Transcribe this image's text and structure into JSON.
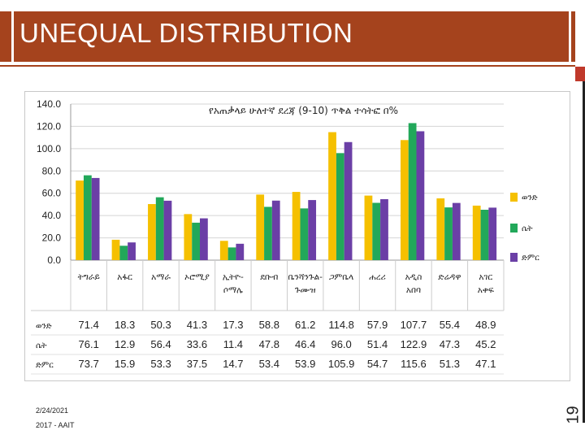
{
  "slide": {
    "title": "UNEQUAL DISTRIBUTION",
    "date": "2/24/2021",
    "footer": "2017 - AAIT",
    "page_number": "19"
  },
  "colors": {
    "title_bg": "#a5431d",
    "male": "#f5c000",
    "female": "#22a85a",
    "total": "#6b3fa6"
  },
  "chart_data": {
    "type": "bar",
    "title": "የአጠቃላይ ሁለተኛ ደረጃ (9-10) ጥቅል ተሳትፎ በ%",
    "ylim": [
      0,
      140
    ],
    "yticks": [
      "0.0",
      "20.0",
      "40.0",
      "60.0",
      "80.0",
      "100.0",
      "120.0",
      "140.0"
    ],
    "categories": [
      "ትግራይ",
      "አፋር",
      "አማራ",
      "ኦሮሚያ",
      "ኢትዮ-ሶማሌ",
      "ደቡብ",
      "ቤንሻንጉል-ጉሙዝ",
      "ጋምቤላ",
      "ሐረሪ",
      "አዲስ አበባ",
      "ድሬዳዋ",
      "አገር አቀፍ"
    ],
    "series": [
      {
        "name": "ወንድ",
        "values": [
          71.4,
          18.3,
          50.3,
          41.3,
          17.3,
          58.8,
          61.2,
          114.8,
          57.9,
          107.7,
          55.4,
          48.9
        ]
      },
      {
        "name": "ሴት",
        "values": [
          76.1,
          12.9,
          56.4,
          33.6,
          11.4,
          47.8,
          46.4,
          96.0,
          51.4,
          122.9,
          47.3,
          45.2
        ]
      },
      {
        "name": "ድምር",
        "values": [
          73.7,
          15.9,
          53.3,
          37.5,
          14.7,
          53.4,
          53.9,
          105.9,
          54.7,
          115.6,
          51.3,
          47.1
        ]
      }
    ],
    "table_values": [
      [
        "71.4",
        "18.3",
        "50.3",
        "41.3",
        "17.3",
        "58.8",
        "61.2",
        "114.8",
        "57.9",
        "107.7",
        "55.4",
        "48.9"
      ],
      [
        "76.1",
        "12.9",
        "56.4",
        "33.6",
        "11.4",
        "47.8",
        "46.4",
        "96.0",
        "51.4",
        "122.9",
        "47.3",
        "45.2"
      ],
      [
        "73.7",
        "15.9",
        "53.3",
        "37.5",
        "14.7",
        "53.4",
        "53.9",
        "105.9",
        "54.7",
        "115.6",
        "51.3",
        "47.1"
      ]
    ],
    "legend_position": "right"
  }
}
